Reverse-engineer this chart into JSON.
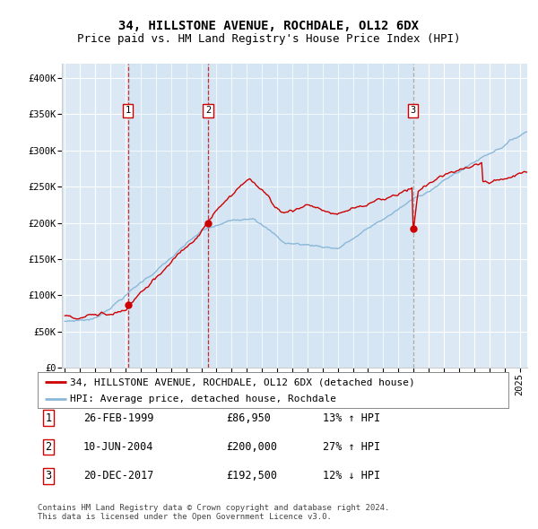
{
  "title": "34, HILLSTONE AVENUE, ROCHDALE, OL12 6DX",
  "subtitle": "Price paid vs. HM Land Registry's House Price Index (HPI)",
  "ylim": [
    0,
    420000
  ],
  "yticks": [
    0,
    50000,
    100000,
    150000,
    200000,
    250000,
    300000,
    350000,
    400000
  ],
  "ytick_labels": [
    "£0",
    "£50K",
    "£100K",
    "£150K",
    "£200K",
    "£250K",
    "£300K",
    "£350K",
    "£400K"
  ],
  "background_color": "#ffffff",
  "plot_bg_color": "#dce9f5",
  "grid_color": "#ffffff",
  "sale_color": "#cc0000",
  "hpi_color": "#8ab8d8",
  "sale_label": "34, HILLSTONE AVENUE, ROCHDALE, OL12 6DX (detached house)",
  "hpi_label": "HPI: Average price, detached house, Rochdale",
  "purchases": [
    {
      "num": 1,
      "date": "26-FEB-1999",
      "x": 1999.15,
      "price": 86950,
      "pct": "13%",
      "dir": "↑"
    },
    {
      "num": 2,
      "date": "10-JUN-2004",
      "x": 2004.44,
      "price": 200000,
      "pct": "27%",
      "dir": "↑"
    },
    {
      "num": 3,
      "date": "20-DEC-2017",
      "x": 2017.97,
      "price": 192500,
      "pct": "12%",
      "dir": "↓"
    }
  ],
  "footnote1": "Contains HM Land Registry data © Crown copyright and database right 2024.",
  "footnote2": "This data is licensed under the Open Government Licence v3.0.",
  "title_fontsize": 10,
  "subtitle_fontsize": 9,
  "tick_fontsize": 7.5,
  "legend_fontsize": 8,
  "table_fontsize": 8.5,
  "footnote_fontsize": 6.5,
  "xstart": 1995.0,
  "xend": 2025.5
}
